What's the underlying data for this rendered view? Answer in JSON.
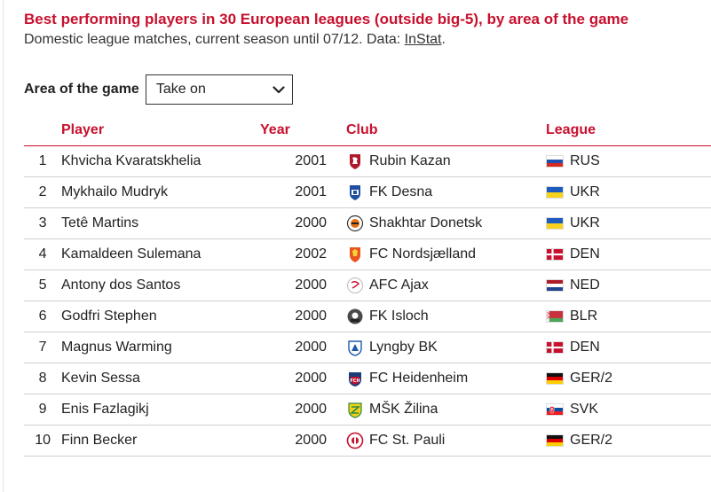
{
  "header": {
    "title": "Best performing players in 30 European leagues (outside big-5), by area of the game",
    "subtitle_prefix": "Domestic league matches, current season until 07/12. Data: ",
    "subtitle_link": "InStat",
    "subtitle_suffix": "."
  },
  "filter": {
    "label": "Area of the game",
    "selected": "Take on"
  },
  "table": {
    "columns": {
      "rank": "",
      "player": "Player",
      "year": "Year",
      "club": "Club",
      "league": "League"
    },
    "rows": [
      {
        "rank": "1",
        "player": "Khvicha Kvaratskhelia",
        "year": "2001",
        "club": "Rubin Kazan",
        "league": "RUS",
        "crest_icon": "rubin-kazan-crest-icon",
        "crest_color": "#b0182b",
        "flag_icon": "russia-flag-icon"
      },
      {
        "rank": "2",
        "player": "Mykhailo Mudryk",
        "year": "2001",
        "club": "FK Desna",
        "league": "UKR",
        "crest_icon": "fk-desna-crest-icon",
        "crest_color": "#1f4fa0",
        "flag_icon": "ukraine-flag-icon"
      },
      {
        "rank": "3",
        "player": "Tetê Martins",
        "year": "2000",
        "club": "Shakhtar Donetsk",
        "league": "UKR",
        "crest_icon": "shakhtar-donetsk-crest-icon",
        "crest_color": "#e46f12",
        "flag_icon": "ukraine-flag-icon"
      },
      {
        "rank": "4",
        "player": "Kamaldeen Sulemana",
        "year": "2002",
        "club": "FC Nordsjælland",
        "league": "DEN",
        "crest_icon": "fc-nordsjaelland-crest-icon",
        "crest_color": "#e8531e",
        "flag_icon": "denmark-flag-icon"
      },
      {
        "rank": "5",
        "player": "Antony dos Santos",
        "year": "2000",
        "club": "AFC Ajax",
        "league": "NED",
        "crest_icon": "afc-ajax-crest-icon",
        "crest_color": "#c8102e",
        "flag_icon": "netherlands-flag-icon"
      },
      {
        "rank": "6",
        "player": "Godfri Stephen",
        "year": "2000",
        "club": "FK Isloch",
        "league": "BLR",
        "crest_icon": "fk-isloch-crest-icon",
        "crest_color": "#4a4a4a",
        "flag_icon": "belarus-flag-icon"
      },
      {
        "rank": "7",
        "player": "Magnus Warming",
        "year": "2000",
        "club": "Lyngby BK",
        "league": "DEN",
        "crest_icon": "lyngby-bk-crest-icon",
        "crest_color": "#1d5aa8",
        "flag_icon": "denmark-flag-icon"
      },
      {
        "rank": "8",
        "player": "Kevin Sessa",
        "year": "2000",
        "club": "FC Heidenheim",
        "league": "GER/2",
        "crest_icon": "fc-heidenheim-crest-icon",
        "crest_color": "#c8102e",
        "flag_icon": "germany-flag-icon"
      },
      {
        "rank": "9",
        "player": "Enis Fazlagikj",
        "year": "2000",
        "club": "MŠK Žilina",
        "league": "SVK",
        "crest_icon": "msk-zilina-crest-icon",
        "crest_color": "#2e8b3a",
        "flag_icon": "slovakia-flag-icon"
      },
      {
        "rank": "10",
        "player": "Finn Becker",
        "year": "2000",
        "club": "FC St. Pauli",
        "league": "GER/2",
        "crest_icon": "fc-st-pauli-crest-icon",
        "crest_color": "#c8102e",
        "flag_icon": "germany-flag-icon"
      }
    ]
  },
  "colors": {
    "accent": "#c8102e",
    "row_rule": "#cfcfcf"
  }
}
